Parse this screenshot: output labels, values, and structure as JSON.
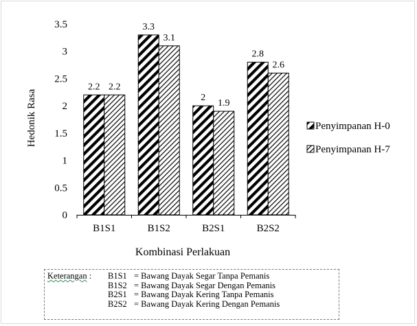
{
  "colors": {
    "bar_fill": "#ffffff",
    "hatch": "#000000",
    "axis": "#000000"
  },
  "chart_data": {
    "type": "bar",
    "categories": [
      "B1S1",
      "B1S2",
      "B2S1",
      "B2S2"
    ],
    "series": [
      {
        "name": "Penyimpanan H-0",
        "values": [
          2.2,
          3.3,
          2,
          2.8
        ],
        "labels": [
          "2.2",
          "3.3",
          "2",
          "2.8"
        ],
        "pattern": "wide-diagonal-hatch"
      },
      {
        "name": "Penyimpanan H-7",
        "values": [
          2.2,
          3.1,
          1.9,
          2.6
        ],
        "labels": [
          "2.2",
          "3.1",
          "1.9",
          "2.6"
        ],
        "pattern": "narrow-diagonal-hatch"
      }
    ],
    "ylim": [
      0,
      3.5
    ],
    "yticks": [
      "0",
      "0.5",
      "1",
      "1.5",
      "2",
      "2.5",
      "3",
      "3.5"
    ],
    "xlabel": "Kombinasi Perlakuan",
    "ylabel": "Hedonik Rasa",
    "grid": false,
    "legend_position": "right"
  },
  "note": {
    "title": "Keterangan",
    "separator": ":",
    "items": [
      {
        "code": "B1S1",
        "text": "= Bawang Dayak Segar Tanpa Pemanis"
      },
      {
        "code": "B1S2",
        "text": "= Bawang Dayak Segar Dengan Pemanis"
      },
      {
        "code": "B2S1",
        "text": "= Bawang Dayak Kering  Tanpa Pemanis"
      },
      {
        "code": "B2S2",
        "text": "= Bawang Dayak Kering  Dengan Pemanis"
      }
    ]
  }
}
